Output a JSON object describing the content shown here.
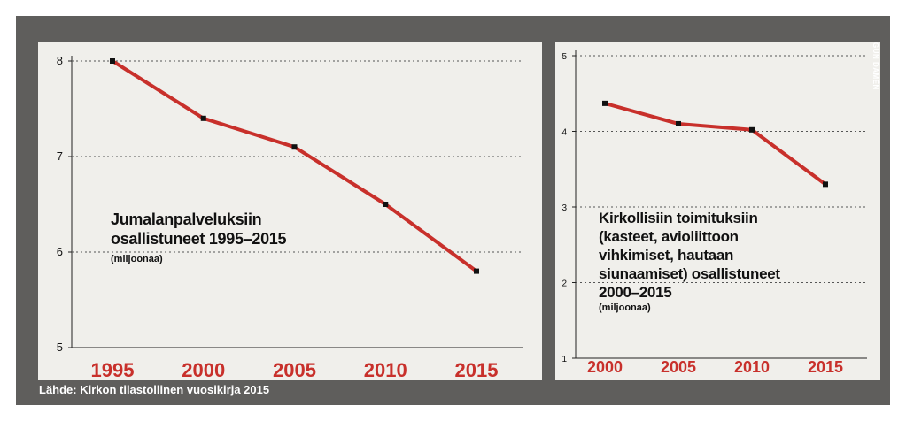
{
  "source": "Lähde: Kirkon tilastollinen vuosikirja 2015",
  "credit": "GUN DAMÉN",
  "colors": {
    "frame": "#5f5e5c",
    "panel": "#f0efeb",
    "line": "#c8302b",
    "grid": "#555555",
    "tick": "#c8302b"
  },
  "chart_data": [
    {
      "type": "line",
      "title_lines": [
        "Jumalanpalveluksiin",
        "osallistuneet 1995–2015"
      ],
      "subtitle": "(miljoonaa)",
      "categories": [
        "1995",
        "2000",
        "2005",
        "2010",
        "2015"
      ],
      "series": [
        {
          "values": [
            8.0,
            7.4,
            7.1,
            6.5,
            5.8
          ]
        }
      ],
      "ylim": [
        5,
        8
      ],
      "yticks": [
        "5",
        "6",
        "7",
        "8"
      ],
      "grid": true
    },
    {
      "type": "line",
      "title_lines": [
        "Kirkollisiin toimituksiin",
        "(kasteet, avioliittoon",
        "vihkimiset, hautaan",
        "siunaamiset) osallistuneet",
        "2000–2015"
      ],
      "subtitle": "(miljoonaa)",
      "categories": [
        "2000",
        "2005",
        "2010",
        "2015"
      ],
      "series": [
        {
          "values": [
            4.37,
            4.1,
            4.02,
            3.3
          ]
        }
      ],
      "ylim": [
        1,
        5
      ],
      "yticks": [
        "1",
        "2",
        "3",
        "4",
        "5"
      ],
      "grid": true
    }
  ]
}
